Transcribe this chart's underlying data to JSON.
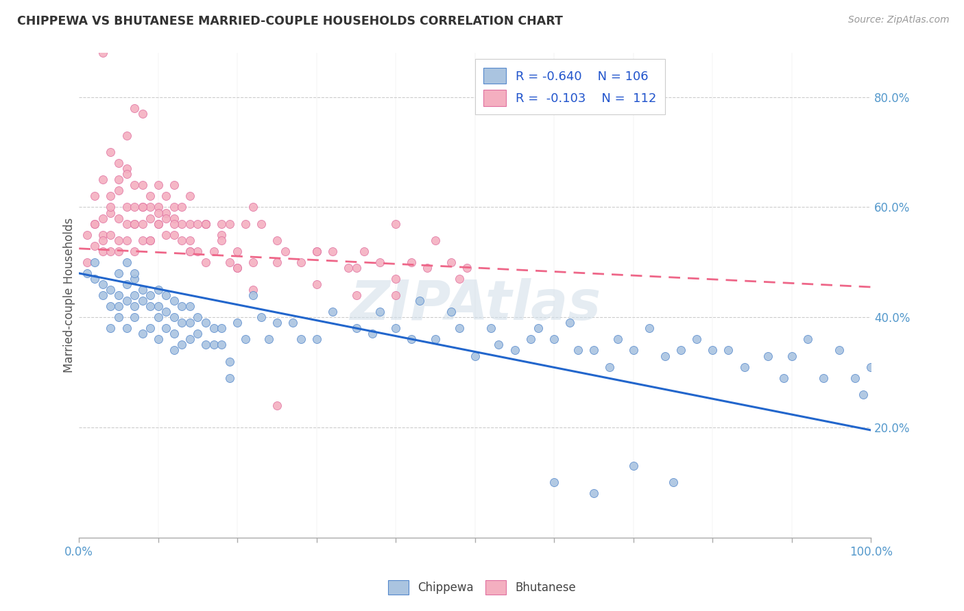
{
  "title": "CHIPPEWA VS BHUTANESE MARRIED-COUPLE HOUSEHOLDS CORRELATION CHART",
  "source": "Source: ZipAtlas.com",
  "ylabel": "Married-couple Households",
  "y_ticks_labels": [
    "20.0%",
    "40.0%",
    "60.0%",
    "80.0%"
  ],
  "y_tick_values": [
    0.2,
    0.4,
    0.6,
    0.8
  ],
  "watermark": "ZIPAtlas",
  "chippewa_color": "#aac4e0",
  "bhutanese_color": "#f4afc0",
  "chippewa_edge_color": "#5588cc",
  "bhutanese_edge_color": "#e070a0",
  "chippewa_line_color": "#2266cc",
  "bhutanese_line_color": "#ee6688",
  "background_color": "#ffffff",
  "grid_color": "#cccccc",
  "chippewa_R": -0.64,
  "chippewa_N": 106,
  "bhutanese_R": -0.103,
  "bhutanese_N": 112,
  "chippewa_x": [
    0.01,
    0.02,
    0.02,
    0.03,
    0.03,
    0.04,
    0.04,
    0.04,
    0.05,
    0.05,
    0.05,
    0.05,
    0.06,
    0.06,
    0.06,
    0.06,
    0.07,
    0.07,
    0.07,
    0.07,
    0.07,
    0.08,
    0.08,
    0.08,
    0.09,
    0.09,
    0.09,
    0.1,
    0.1,
    0.1,
    0.1,
    0.11,
    0.11,
    0.11,
    0.12,
    0.12,
    0.12,
    0.12,
    0.13,
    0.13,
    0.13,
    0.14,
    0.14,
    0.14,
    0.15,
    0.15,
    0.16,
    0.16,
    0.17,
    0.17,
    0.18,
    0.18,
    0.19,
    0.19,
    0.2,
    0.21,
    0.22,
    0.23,
    0.24,
    0.25,
    0.27,
    0.28,
    0.3,
    0.32,
    0.35,
    0.37,
    0.38,
    0.4,
    0.42,
    0.43,
    0.45,
    0.47,
    0.48,
    0.5,
    0.52,
    0.53,
    0.55,
    0.57,
    0.58,
    0.6,
    0.62,
    0.63,
    0.65,
    0.67,
    0.68,
    0.7,
    0.72,
    0.74,
    0.76,
    0.78,
    0.8,
    0.82,
    0.84,
    0.87,
    0.89,
    0.9,
    0.92,
    0.94,
    0.96,
    0.98,
    0.99,
    1.0,
    0.6,
    0.65,
    0.7,
    0.75
  ],
  "chippewa_y": [
    0.48,
    0.5,
    0.47,
    0.44,
    0.46,
    0.45,
    0.42,
    0.38,
    0.44,
    0.42,
    0.48,
    0.4,
    0.46,
    0.5,
    0.43,
    0.38,
    0.47,
    0.44,
    0.42,
    0.48,
    0.4,
    0.45,
    0.43,
    0.37,
    0.44,
    0.42,
    0.38,
    0.45,
    0.42,
    0.4,
    0.36,
    0.44,
    0.41,
    0.38,
    0.43,
    0.4,
    0.37,
    0.34,
    0.42,
    0.39,
    0.35,
    0.42,
    0.39,
    0.36,
    0.4,
    0.37,
    0.39,
    0.35,
    0.38,
    0.35,
    0.38,
    0.35,
    0.32,
    0.29,
    0.39,
    0.36,
    0.44,
    0.4,
    0.36,
    0.39,
    0.39,
    0.36,
    0.36,
    0.41,
    0.38,
    0.37,
    0.41,
    0.38,
    0.36,
    0.43,
    0.36,
    0.41,
    0.38,
    0.33,
    0.38,
    0.35,
    0.34,
    0.36,
    0.38,
    0.36,
    0.39,
    0.34,
    0.34,
    0.31,
    0.36,
    0.34,
    0.38,
    0.33,
    0.34,
    0.36,
    0.34,
    0.34,
    0.31,
    0.33,
    0.29,
    0.33,
    0.36,
    0.29,
    0.34,
    0.29,
    0.26,
    0.31,
    0.1,
    0.08,
    0.13,
    0.1
  ],
  "bhutanese_x": [
    0.01,
    0.01,
    0.02,
    0.02,
    0.02,
    0.03,
    0.03,
    0.03,
    0.03,
    0.04,
    0.04,
    0.04,
    0.04,
    0.05,
    0.05,
    0.05,
    0.05,
    0.06,
    0.06,
    0.06,
    0.06,
    0.07,
    0.07,
    0.07,
    0.07,
    0.08,
    0.08,
    0.08,
    0.08,
    0.09,
    0.09,
    0.09,
    0.1,
    0.1,
    0.1,
    0.11,
    0.11,
    0.11,
    0.12,
    0.12,
    0.12,
    0.13,
    0.13,
    0.13,
    0.14,
    0.14,
    0.14,
    0.15,
    0.15,
    0.16,
    0.16,
    0.17,
    0.18,
    0.19,
    0.2,
    0.21,
    0.22,
    0.23,
    0.25,
    0.26,
    0.28,
    0.3,
    0.32,
    0.34,
    0.36,
    0.38,
    0.4,
    0.42,
    0.45,
    0.47,
    0.49,
    0.2,
    0.22,
    0.25,
    0.19,
    0.3,
    0.35,
    0.4,
    0.03,
    0.04,
    0.05,
    0.06,
    0.07,
    0.08,
    0.09,
    0.1,
    0.11,
    0.12,
    0.14,
    0.16,
    0.18,
    0.22,
    0.02,
    0.03,
    0.04,
    0.05,
    0.06,
    0.07,
    0.08,
    0.09,
    0.1,
    0.12,
    0.14,
    0.16,
    0.18,
    0.2,
    0.25,
    0.3,
    0.35,
    0.4,
    0.44,
    0.48
  ],
  "bhutanese_y": [
    0.5,
    0.55,
    0.57,
    0.62,
    0.53,
    0.58,
    0.55,
    0.52,
    0.65,
    0.59,
    0.55,
    0.52,
    0.62,
    0.58,
    0.54,
    0.63,
    0.52,
    0.6,
    0.54,
    0.57,
    0.67,
    0.6,
    0.57,
    0.64,
    0.52,
    0.6,
    0.54,
    0.64,
    0.57,
    0.58,
    0.54,
    0.62,
    0.6,
    0.57,
    0.64,
    0.59,
    0.55,
    0.62,
    0.6,
    0.55,
    0.64,
    0.57,
    0.54,
    0.6,
    0.57,
    0.52,
    0.62,
    0.57,
    0.52,
    0.57,
    0.5,
    0.52,
    0.57,
    0.57,
    0.52,
    0.57,
    0.5,
    0.57,
    0.54,
    0.52,
    0.5,
    0.52,
    0.52,
    0.49,
    0.52,
    0.5,
    0.57,
    0.5,
    0.54,
    0.5,
    0.49,
    0.49,
    0.45,
    0.24,
    0.5,
    0.46,
    0.44,
    0.44,
    0.88,
    0.6,
    0.65,
    0.73,
    0.78,
    0.77,
    0.6,
    0.59,
    0.58,
    0.58,
    0.54,
    0.57,
    0.55,
    0.6,
    0.57,
    0.54,
    0.7,
    0.68,
    0.66,
    0.57,
    0.6,
    0.54,
    0.57,
    0.57,
    0.52,
    0.57,
    0.54,
    0.49,
    0.5,
    0.52,
    0.49,
    0.47,
    0.49,
    0.47
  ]
}
